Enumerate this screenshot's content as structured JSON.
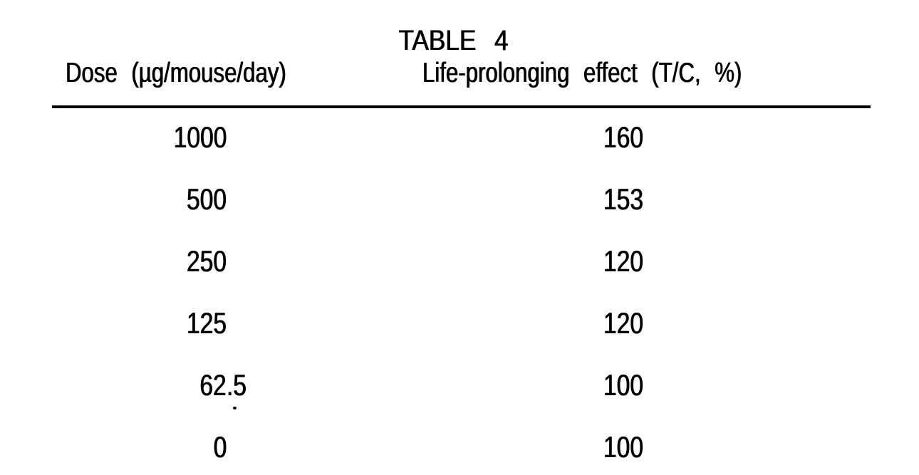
{
  "page": {
    "title": "TABLE 4",
    "table": {
      "columns": [
        {
          "label": "Dose (µg/mouse/day)"
        },
        {
          "label": "Life-prolonging effect (T/C, %)"
        }
      ],
      "rows": [
        {
          "dose": "1000",
          "effect": "160"
        },
        {
          "dose": "500",
          "effect": "153"
        },
        {
          "dose": "250",
          "effect": "120"
        },
        {
          "dose": "125",
          "effect": "120"
        },
        {
          "dose": "62.5",
          "effect": "100"
        },
        {
          "dose": "0",
          "effect": "100"
        }
      ]
    }
  }
}
